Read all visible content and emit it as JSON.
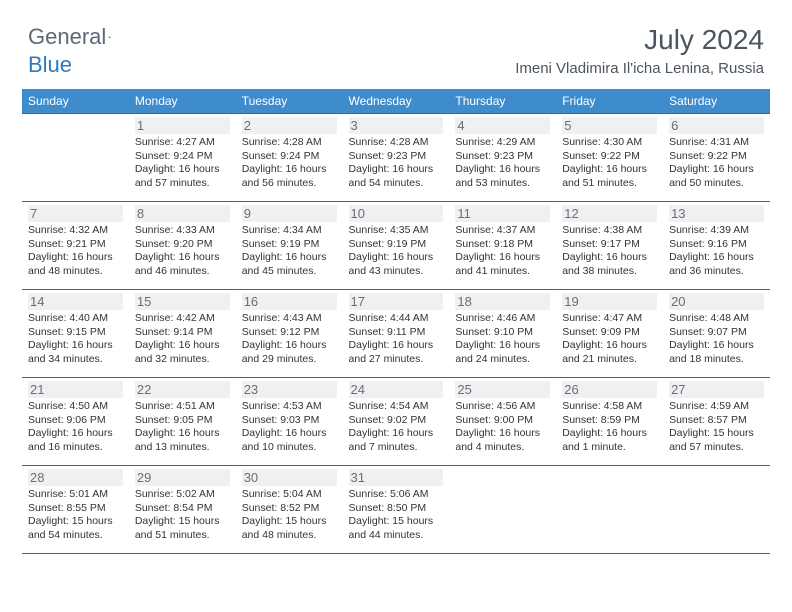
{
  "logo": {
    "part1": "General",
    "part2": "Blue"
  },
  "title": "July 2024",
  "location": "Imeni Vladimira Il'icha Lenina, Russia",
  "colors": {
    "header_bg": "#3e8ccc",
    "header_text": "#ffffff",
    "border": "#2d6aa3",
    "daynum_bg": "#eef0f2",
    "daynum_color": "#6a6f76",
    "title_color": "#4a5560"
  },
  "weekdays": [
    "Sunday",
    "Monday",
    "Tuesday",
    "Wednesday",
    "Thursday",
    "Friday",
    "Saturday"
  ],
  "weeks": [
    [
      null,
      {
        "n": "1",
        "sr": "Sunrise: 4:27 AM",
        "ss": "Sunset: 9:24 PM",
        "d1": "Daylight: 16 hours",
        "d2": "and 57 minutes."
      },
      {
        "n": "2",
        "sr": "Sunrise: 4:28 AM",
        "ss": "Sunset: 9:24 PM",
        "d1": "Daylight: 16 hours",
        "d2": "and 56 minutes."
      },
      {
        "n": "3",
        "sr": "Sunrise: 4:28 AM",
        "ss": "Sunset: 9:23 PM",
        "d1": "Daylight: 16 hours",
        "d2": "and 54 minutes."
      },
      {
        "n": "4",
        "sr": "Sunrise: 4:29 AM",
        "ss": "Sunset: 9:23 PM",
        "d1": "Daylight: 16 hours",
        "d2": "and 53 minutes."
      },
      {
        "n": "5",
        "sr": "Sunrise: 4:30 AM",
        "ss": "Sunset: 9:22 PM",
        "d1": "Daylight: 16 hours",
        "d2": "and 51 minutes."
      },
      {
        "n": "6",
        "sr": "Sunrise: 4:31 AM",
        "ss": "Sunset: 9:22 PM",
        "d1": "Daylight: 16 hours",
        "d2": "and 50 minutes."
      }
    ],
    [
      {
        "n": "7",
        "sr": "Sunrise: 4:32 AM",
        "ss": "Sunset: 9:21 PM",
        "d1": "Daylight: 16 hours",
        "d2": "and 48 minutes."
      },
      {
        "n": "8",
        "sr": "Sunrise: 4:33 AM",
        "ss": "Sunset: 9:20 PM",
        "d1": "Daylight: 16 hours",
        "d2": "and 46 minutes."
      },
      {
        "n": "9",
        "sr": "Sunrise: 4:34 AM",
        "ss": "Sunset: 9:19 PM",
        "d1": "Daylight: 16 hours",
        "d2": "and 45 minutes."
      },
      {
        "n": "10",
        "sr": "Sunrise: 4:35 AM",
        "ss": "Sunset: 9:19 PM",
        "d1": "Daylight: 16 hours",
        "d2": "and 43 minutes."
      },
      {
        "n": "11",
        "sr": "Sunrise: 4:37 AM",
        "ss": "Sunset: 9:18 PM",
        "d1": "Daylight: 16 hours",
        "d2": "and 41 minutes."
      },
      {
        "n": "12",
        "sr": "Sunrise: 4:38 AM",
        "ss": "Sunset: 9:17 PM",
        "d1": "Daylight: 16 hours",
        "d2": "and 38 minutes."
      },
      {
        "n": "13",
        "sr": "Sunrise: 4:39 AM",
        "ss": "Sunset: 9:16 PM",
        "d1": "Daylight: 16 hours",
        "d2": "and 36 minutes."
      }
    ],
    [
      {
        "n": "14",
        "sr": "Sunrise: 4:40 AM",
        "ss": "Sunset: 9:15 PM",
        "d1": "Daylight: 16 hours",
        "d2": "and 34 minutes."
      },
      {
        "n": "15",
        "sr": "Sunrise: 4:42 AM",
        "ss": "Sunset: 9:14 PM",
        "d1": "Daylight: 16 hours",
        "d2": "and 32 minutes."
      },
      {
        "n": "16",
        "sr": "Sunrise: 4:43 AM",
        "ss": "Sunset: 9:12 PM",
        "d1": "Daylight: 16 hours",
        "d2": "and 29 minutes."
      },
      {
        "n": "17",
        "sr": "Sunrise: 4:44 AM",
        "ss": "Sunset: 9:11 PM",
        "d1": "Daylight: 16 hours",
        "d2": "and 27 minutes."
      },
      {
        "n": "18",
        "sr": "Sunrise: 4:46 AM",
        "ss": "Sunset: 9:10 PM",
        "d1": "Daylight: 16 hours",
        "d2": "and 24 minutes."
      },
      {
        "n": "19",
        "sr": "Sunrise: 4:47 AM",
        "ss": "Sunset: 9:09 PM",
        "d1": "Daylight: 16 hours",
        "d2": "and 21 minutes."
      },
      {
        "n": "20",
        "sr": "Sunrise: 4:48 AM",
        "ss": "Sunset: 9:07 PM",
        "d1": "Daylight: 16 hours",
        "d2": "and 18 minutes."
      }
    ],
    [
      {
        "n": "21",
        "sr": "Sunrise: 4:50 AM",
        "ss": "Sunset: 9:06 PM",
        "d1": "Daylight: 16 hours",
        "d2": "and 16 minutes."
      },
      {
        "n": "22",
        "sr": "Sunrise: 4:51 AM",
        "ss": "Sunset: 9:05 PM",
        "d1": "Daylight: 16 hours",
        "d2": "and 13 minutes."
      },
      {
        "n": "23",
        "sr": "Sunrise: 4:53 AM",
        "ss": "Sunset: 9:03 PM",
        "d1": "Daylight: 16 hours",
        "d2": "and 10 minutes."
      },
      {
        "n": "24",
        "sr": "Sunrise: 4:54 AM",
        "ss": "Sunset: 9:02 PM",
        "d1": "Daylight: 16 hours",
        "d2": "and 7 minutes."
      },
      {
        "n": "25",
        "sr": "Sunrise: 4:56 AM",
        "ss": "Sunset: 9:00 PM",
        "d1": "Daylight: 16 hours",
        "d2": "and 4 minutes."
      },
      {
        "n": "26",
        "sr": "Sunrise: 4:58 AM",
        "ss": "Sunset: 8:59 PM",
        "d1": "Daylight: 16 hours",
        "d2": "and 1 minute."
      },
      {
        "n": "27",
        "sr": "Sunrise: 4:59 AM",
        "ss": "Sunset: 8:57 PM",
        "d1": "Daylight: 15 hours",
        "d2": "and 57 minutes."
      }
    ],
    [
      {
        "n": "28",
        "sr": "Sunrise: 5:01 AM",
        "ss": "Sunset: 8:55 PM",
        "d1": "Daylight: 15 hours",
        "d2": "and 54 minutes."
      },
      {
        "n": "29",
        "sr": "Sunrise: 5:02 AM",
        "ss": "Sunset: 8:54 PM",
        "d1": "Daylight: 15 hours",
        "d2": "and 51 minutes."
      },
      {
        "n": "30",
        "sr": "Sunrise: 5:04 AM",
        "ss": "Sunset: 8:52 PM",
        "d1": "Daylight: 15 hours",
        "d2": "and 48 minutes."
      },
      {
        "n": "31",
        "sr": "Sunrise: 5:06 AM",
        "ss": "Sunset: 8:50 PM",
        "d1": "Daylight: 15 hours",
        "d2": "and 44 minutes."
      },
      null,
      null,
      null
    ]
  ]
}
